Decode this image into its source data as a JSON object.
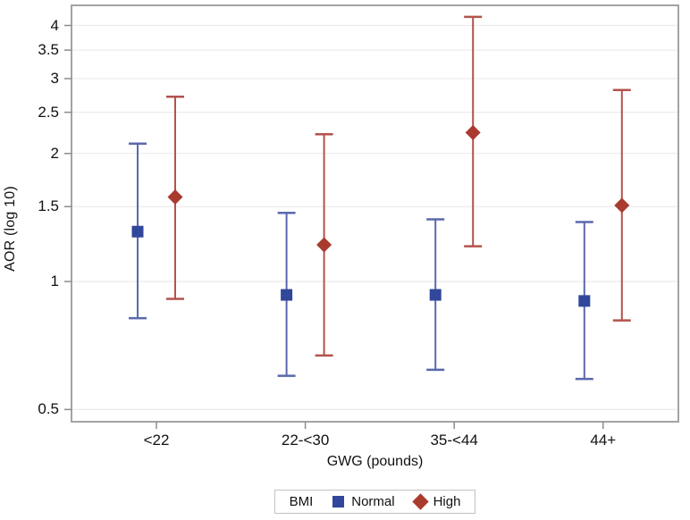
{
  "chart_data": {
    "type": "scatter",
    "subtype": "point-estimate-with-95ci-error-bars",
    "title": "",
    "xlabel": "GWG (pounds)",
    "ylabel": "AOR (log 10)",
    "y_scale": "log10",
    "ylim": [
      0.468,
      4.46
    ],
    "y_ticks": [
      4,
      3.5,
      3,
      2.5,
      2,
      1.5,
      1,
      0.5
    ],
    "y_tick_labels": [
      "4",
      "3.5",
      "3",
      "2.5",
      "2",
      "1.5",
      "1",
      "0.5"
    ],
    "categories": [
      "<22",
      "22-<30",
      "35-<44",
      "44+"
    ],
    "grid": "horizontal",
    "legend": {
      "title": "BMI",
      "position": "bottom"
    },
    "series": [
      {
        "name": "Normal",
        "marker": "square",
        "color": "#31479B",
        "line_color": "#5A68AC",
        "values": [
          1.31,
          0.93,
          0.93,
          0.9
        ],
        "ci_low": [
          0.82,
          0.6,
          0.62,
          0.59
        ],
        "ci_high": [
          2.11,
          1.45,
          1.4,
          1.38
        ]
      },
      {
        "name": "High",
        "marker": "diamond",
        "color": "#A93B2E",
        "line_color": "#B2534B",
        "values": [
          1.58,
          1.22,
          2.24,
          1.51
        ],
        "ci_low": [
          0.91,
          0.67,
          1.21,
          0.81
        ],
        "ci_high": [
          2.72,
          2.22,
          4.19,
          2.82
        ]
      }
    ],
    "colors": {
      "grid": "#ececec",
      "frame": "#a3a3a3",
      "tick": "#8c8c8c",
      "text": "#111111"
    }
  }
}
